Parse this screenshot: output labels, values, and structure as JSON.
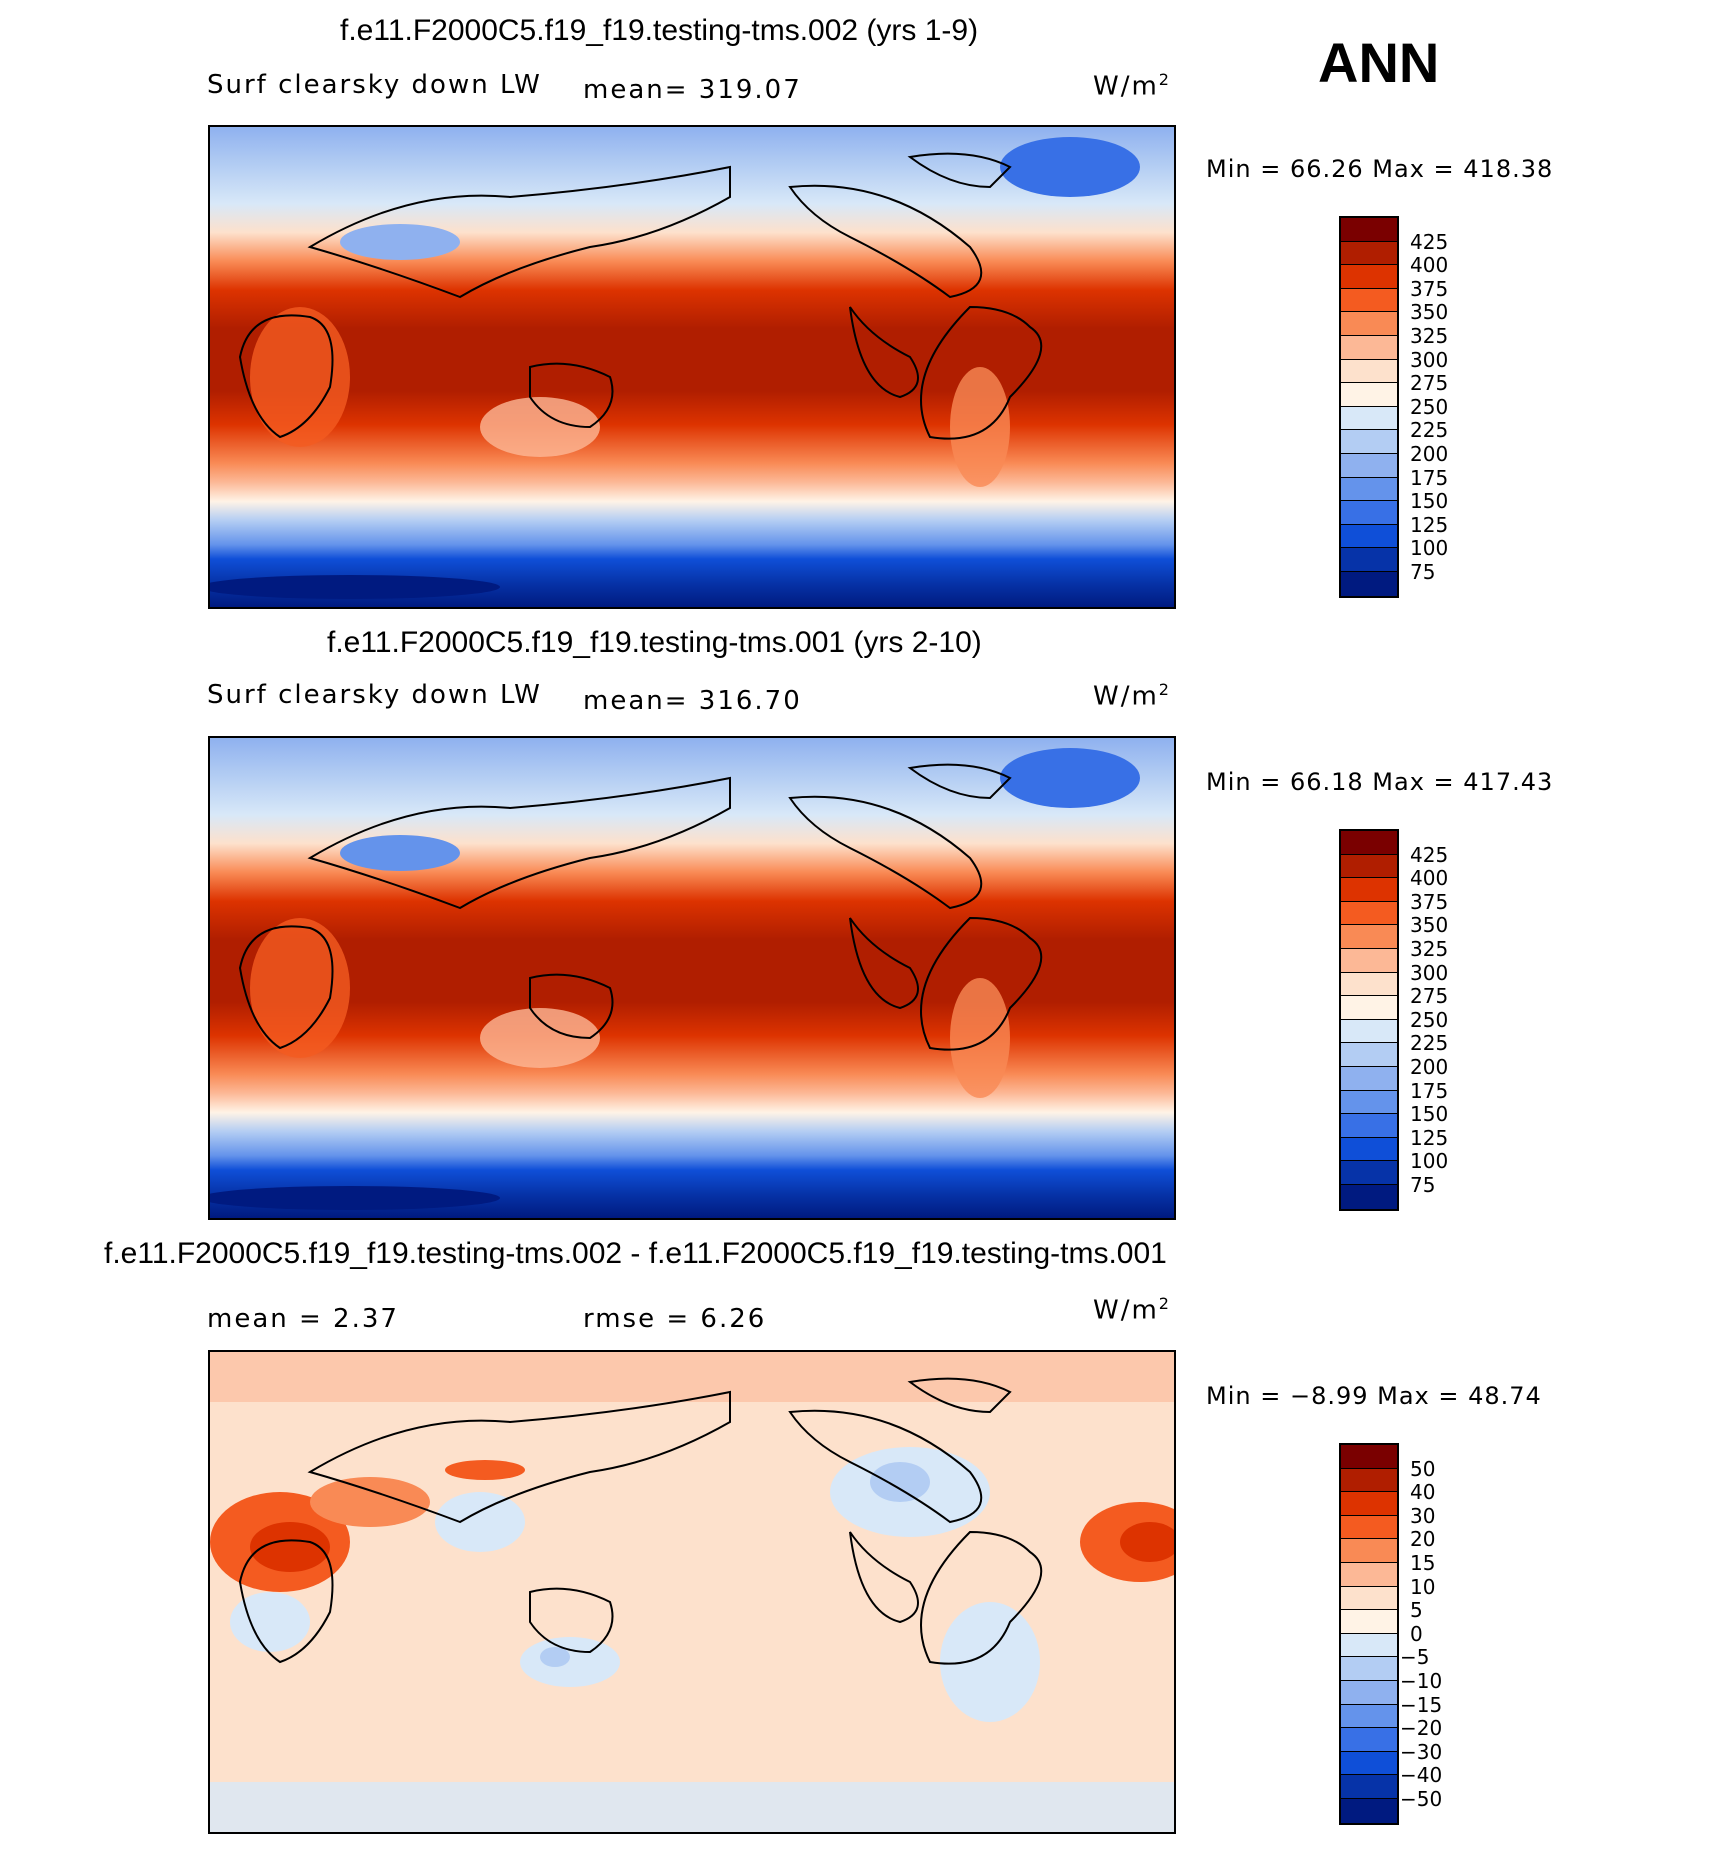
{
  "season": "ANN",
  "panels": [
    {
      "title": "f.e11.F2000C5.f19_f19.testing-tms.002 (yrs 1-9)",
      "left_label": "Surf clearsky down LW",
      "center_label": "mean= 319.07",
      "units_prefix": "W/m",
      "units_exp": "2",
      "minmax": "Min =   66.26 Max = 418.38",
      "colorbar": {
        "labels": [
          "425",
          "400",
          "375",
          "350",
          "325",
          "300",
          "275",
          "250",
          "225",
          "200",
          "175",
          "150",
          "125",
          "100",
          "75"
        ],
        "colors": [
          "#7a0000",
          "#b01e00",
          "#dd3300",
          "#f45b20",
          "#f98a55",
          "#fcb896",
          "#fde1cc",
          "#fff3e6",
          "#d8e8f8",
          "#b3cdf3",
          "#8fb1ef",
          "#6493eb",
          "#3870e6",
          "#0f4fd8",
          "#0633a8",
          "#001a80"
        ]
      }
    },
    {
      "title": "f.e11.F2000C5.f19_f19.testing-tms.001 (yrs 2-10)",
      "left_label": "Surf clearsky down LW",
      "center_label": "mean= 316.70",
      "units_prefix": "W/m",
      "units_exp": "2",
      "minmax": "Min =   66.18 Max = 417.43",
      "colorbar": {
        "labels": [
          "425",
          "400",
          "375",
          "350",
          "325",
          "300",
          "275",
          "250",
          "225",
          "200",
          "175",
          "150",
          "125",
          "100",
          "75"
        ],
        "colors": [
          "#7a0000",
          "#b01e00",
          "#dd3300",
          "#f45b20",
          "#f98a55",
          "#fcb896",
          "#fde1cc",
          "#fff3e6",
          "#d8e8f8",
          "#b3cdf3",
          "#8fb1ef",
          "#6493eb",
          "#3870e6",
          "#0f4fd8",
          "#0633a8",
          "#001a80"
        ]
      }
    },
    {
      "title": "f.e11.F2000C5.f19_f19.testing-tms.002 - f.e11.F2000C5.f19_f19.testing-tms.001",
      "left_label": "mean =    2.37",
      "center_label": "rmse =    6.26",
      "units_prefix": "W/m",
      "units_exp": "2",
      "minmax": "Min =  −8.99 Max =   48.74",
      "colorbar": {
        "labels": [
          "50",
          "40",
          "30",
          "20",
          "15",
          "10",
          "5",
          "0",
          "−5",
          "−10",
          "−15",
          "−20",
          "−30",
          "−40",
          "−50"
        ],
        "colors": [
          "#7a0000",
          "#b01e00",
          "#dd3300",
          "#f45b20",
          "#f98a55",
          "#fcb896",
          "#fde1cc",
          "#fff3e6",
          "#d8e8f8",
          "#b3cdf3",
          "#8fb1ef",
          "#6493eb",
          "#3870e6",
          "#0f4fd8",
          "#0633a8",
          "#001a80"
        ]
      }
    }
  ]
}
